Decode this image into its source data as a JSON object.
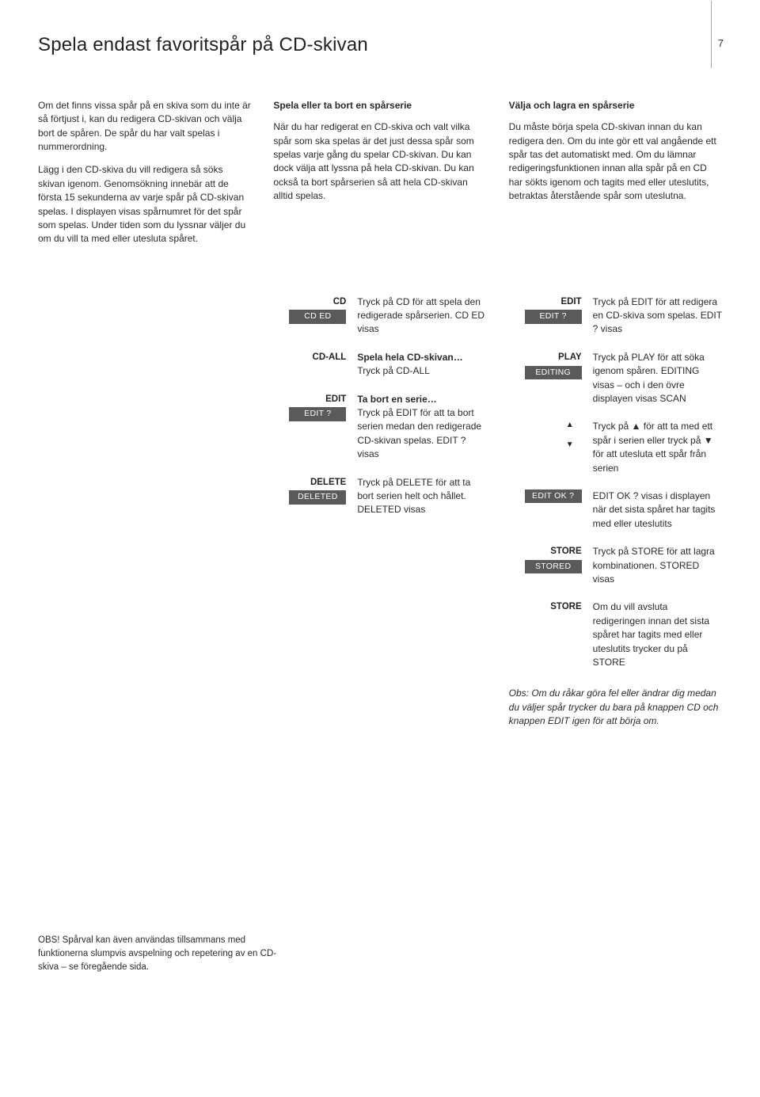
{
  "header": {
    "title": "Spela endast favoritspår på CD-skivan",
    "page_number": "7"
  },
  "intro": {
    "p1": "Om det finns vissa spår på en skiva som du inte är så förtjust i, kan du redigera CD-skivan och välja bort de spåren. De spår du har valt spelas i nummerordning.",
    "p2": "Lägg i den CD-skiva du vill redigera så söks skivan igenom. Genomsökning innebär att de första 15 sekunderna av varje spår på CD-skivan spelas. I displayen visas spårnumret för det spår som spelas. Under tiden som du lyssnar väljer du om du vill ta med eller utesluta spåret."
  },
  "col2": {
    "heading": "Spela eller ta bort en spårserie",
    "text": "När du har redigerat en CD-skiva och valt vilka spår som ska spelas är det just dessa spår som spelas varje gång du spelar CD-skivan. Du kan dock välja att lyssna på hela CD-skivan. Du kan också ta bort spårserien så att hela CD-skivan alltid spelas."
  },
  "col3": {
    "heading": "Välja och lagra en spårserie",
    "text": "Du måste börja spela CD-skivan innan du kan redigera den. Om du inte gör ett val angående ett spår tas det automatiskt med. Om du lämnar redigeringsfunktionen innan alla spår på en CD har sökts igenom och tagits med eller uteslutits, betraktas återstående spår som uteslutna."
  },
  "left_steps": [
    {
      "btn": "CD",
      "display": "CD ED",
      "desc": "Tryck på CD för att spela den redigerade spårserien. CD ED visas"
    },
    {
      "btn": "CD-ALL",
      "display": "",
      "lead": "Spela hela CD-skivan…",
      "desc": "Tryck på CD-ALL"
    },
    {
      "btn": "EDIT",
      "display": "EDIT ?",
      "lead": "Ta bort en serie…",
      "desc": "Tryck på EDIT för att ta bort serien medan den redigerade CD-skivan spelas. EDIT ? visas"
    },
    {
      "btn": "DELETE",
      "display": "DELETED",
      "desc": "Tryck på DELETE för att ta bort serien helt och hållet. DELETED visas"
    }
  ],
  "right_steps": [
    {
      "btn": "EDIT",
      "display": "EDIT ?",
      "desc": "Tryck på EDIT för att redigera en CD-skiva som spelas. EDIT ? visas"
    },
    {
      "btn": "PLAY",
      "display": "EDITING",
      "desc": "Tryck på PLAY för att söka igenom spåren. EDITING visas – och i den övre displayen visas SCAN"
    },
    {
      "arrows": true,
      "desc": "Tryck på ▲ för att ta med ett spår i serien eller tryck på ▼ för att utesluta ett spår från serien"
    },
    {
      "btn": "",
      "display": "EDIT OK ?",
      "desc": "EDIT OK ? visas i displayen när det sista spåret har tagits med eller uteslutits"
    },
    {
      "btn": "STORE",
      "display": "STORED",
      "desc": "Tryck på STORE för att lagra kombinationen. STORED visas"
    },
    {
      "btn": "STORE",
      "display": "",
      "desc": "Om du vill avsluta redigeringen innan det sista spåret har tagits med eller uteslutits trycker du på STORE"
    }
  ],
  "note": "Obs: Om du råkar göra fel eller ändrar dig medan du väljer spår trycker du bara på knappen CD och knappen EDIT igen för att börja om.",
  "footer": "OBS! Spårval kan även användas tillsammans med funktionerna slumpvis avspelning och repetering av en CD-skiva – se föregående sida."
}
